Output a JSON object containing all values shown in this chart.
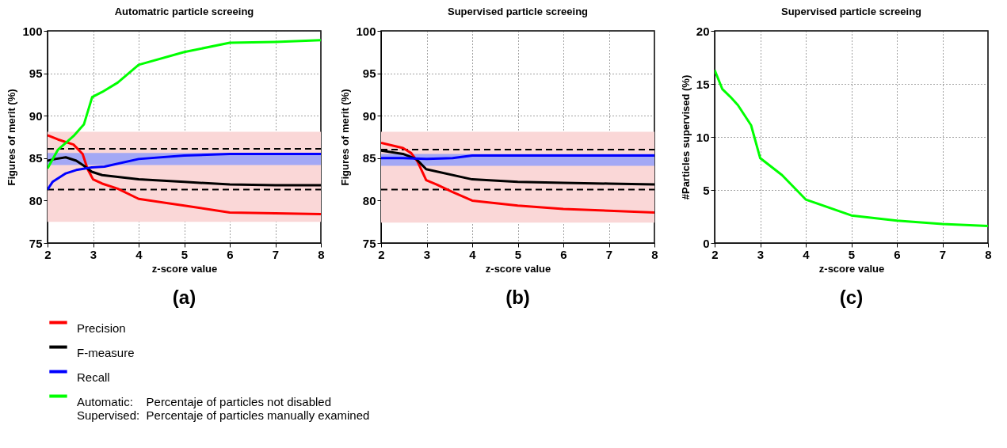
{
  "chart_data": [
    {
      "type": "line",
      "title": "Automatric particle screeing",
      "xlabel": "z-score value",
      "ylabel": "Figures of merit (%)",
      "xlim": [
        2,
        8
      ],
      "xticks": [
        2,
        3,
        4,
        5,
        6,
        7,
        8
      ],
      "ylim": [
        75,
        100
      ],
      "yticks": [
        75,
        80,
        85,
        90,
        95,
        100
      ],
      "grid": true,
      "legend": "bottom",
      "annotations": [
        "(a)"
      ],
      "bands": [
        {
          "axis": "y",
          "from": 77.5,
          "to": 88.1,
          "color": "#fad7d7"
        },
        {
          "axis": "y",
          "from": 84.2,
          "to": 85.6,
          "color": "#a3a8f5"
        }
      ],
      "ref_lines": [
        {
          "axis": "y",
          "value": 86.1,
          "color": "#000000",
          "line_style": "dashed"
        },
        {
          "axis": "y",
          "value": 81.3,
          "color": "#000000",
          "line_style": "dashed"
        }
      ],
      "series": [
        {
          "name": "Precision",
          "color": "#ff0000",
          "x": [
            2,
            2.23,
            2.57,
            2.77,
            2.88,
            3,
            3.2,
            3.54,
            4,
            5,
            6,
            7,
            8
          ],
          "values": [
            87.7,
            87.2,
            86.6,
            85.5,
            83.7,
            82.5,
            82,
            81.4,
            80.2,
            79.4,
            78.6,
            78.5,
            78.4
          ]
        },
        {
          "name": "F-measure",
          "color": "#000000",
          "x": [
            2,
            2.17,
            2.4,
            2.63,
            2.8,
            2.97,
            3.2,
            4,
            5,
            6,
            7,
            8
          ],
          "values": [
            84.7,
            84.9,
            85.1,
            84.7,
            84.1,
            83.4,
            83,
            82.5,
            82.2,
            81.9,
            81.8,
            81.8
          ]
        },
        {
          "name": "Recall",
          "color": "#0000ff",
          "x": [
            2,
            2.11,
            2.4,
            2.63,
            2.97,
            3.25,
            4,
            5,
            6,
            8
          ],
          "values": [
            81.3,
            82.2,
            83.2,
            83.6,
            83.9,
            84,
            84.9,
            85.3,
            85.5,
            85.5
          ]
        },
        {
          "name": "Automatic:    Percentaje of particles not disabled\nSupervised:  Percentaje of particles manually examined",
          "color": "#00ff00",
          "x": [
            2,
            2.23,
            2.57,
            2.8,
            2.98,
            3.2,
            3.54,
            4,
            5,
            6,
            7,
            8
          ],
          "values": [
            83.8,
            86,
            87.6,
            89,
            92.2,
            92.8,
            93.9,
            96,
            97.5,
            98.6,
            98.7,
            98.9
          ]
        }
      ]
    },
    {
      "type": "line",
      "title": "Supervised particle screeing",
      "xlabel": "z-score value",
      "ylabel": "Figures of merit (%)",
      "xlim": [
        2,
        8
      ],
      "xticks": [
        2,
        3,
        4,
        5,
        6,
        7,
        8
      ],
      "ylim": [
        75,
        100
      ],
      "yticks": [
        75,
        80,
        85,
        90,
        95,
        100
      ],
      "grid": true,
      "annotations": [
        "(b)"
      ],
      "bands": [
        {
          "axis": "y",
          "from": 77.4,
          "to": 88.1,
          "color": "#fad7d7"
        },
        {
          "axis": "y",
          "from": 84.1,
          "to": 85.5,
          "color": "#a3a8f5"
        }
      ],
      "ref_lines": [
        {
          "axis": "y",
          "value": 86,
          "color": "#000000",
          "line_style": "dashed"
        },
        {
          "axis": "y",
          "value": 81.3,
          "color": "#000000",
          "line_style": "dashed"
        }
      ],
      "series": [
        {
          "color": "#ff0000",
          "x": [
            2,
            2.48,
            2.66,
            2.8,
            2.99,
            3.22,
            3.57,
            4,
            5,
            6,
            7,
            8
          ],
          "values": [
            86.8,
            86.2,
            85.6,
            84.6,
            82.4,
            81.9,
            81,
            80,
            79.4,
            79,
            78.8,
            78.6
          ]
        },
        {
          "color": "#000000",
          "x": [
            2,
            2.48,
            2.77,
            2.99,
            4,
            5,
            6,
            7,
            8
          ],
          "values": [
            85.9,
            85.5,
            84.9,
            83.7,
            82.5,
            82.2,
            82.1,
            82,
            81.9
          ]
        },
        {
          "color": "#0000ff",
          "x": [
            2,
            2.48,
            3,
            3.57,
            4,
            5,
            8
          ],
          "values": [
            85,
            85,
            84.9,
            85,
            85.3,
            85.3,
            85.3
          ]
        }
      ]
    },
    {
      "type": "line",
      "title": "Supervised particle screeing",
      "xlabel": "z-score value",
      "ylabel": "#Particles supervised (%)",
      "xlim": [
        2,
        8
      ],
      "xticks": [
        2,
        3,
        4,
        5,
        6,
        7,
        8
      ],
      "ylim": [
        0,
        20
      ],
      "yticks": [
        0,
        5,
        10,
        15,
        20
      ],
      "grid": true,
      "annotations": [
        "(c)"
      ],
      "series": [
        {
          "color": "#00ff00",
          "x": [
            2,
            2.17,
            2.34,
            2.51,
            2.8,
            3,
            3.48,
            4,
            5,
            6,
            7,
            8
          ],
          "values": [
            16.3,
            14.5,
            13.8,
            13,
            11.1,
            8,
            6.4,
            4.1,
            2.6,
            2.1,
            1.8,
            1.6
          ]
        }
      ]
    }
  ]
}
